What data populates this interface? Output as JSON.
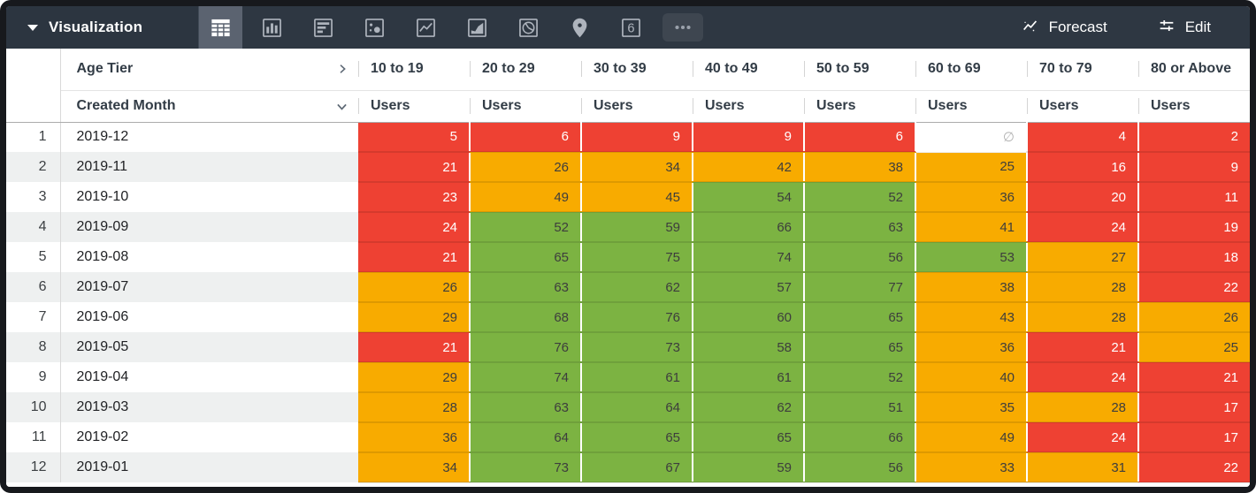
{
  "toolbar": {
    "title": "Visualization",
    "single_value_glyph": "6",
    "forecast_label": "Forecast",
    "edit_label": "Edit"
  },
  "table": {
    "pivot_field": "Age Tier",
    "row_field": "Created Month",
    "measure_label": "Users",
    "columns": [
      "10 to 19",
      "20 to 29",
      "30 to 39",
      "40 to 49",
      "50 to 59",
      "60 to 69",
      "70 to 79",
      "80 or Above"
    ],
    "null_symbol": "∅",
    "rows": [
      {
        "n": "1",
        "month": "2019-12",
        "values": [
          5,
          6,
          9,
          9,
          6,
          null,
          4,
          2
        ],
        "colors": [
          "r",
          "r",
          "r",
          "r",
          "r",
          "x",
          "r",
          "r"
        ]
      },
      {
        "n": "2",
        "month": "2019-11",
        "values": [
          21,
          26,
          34,
          42,
          38,
          25,
          16,
          9
        ],
        "colors": [
          "r",
          "o",
          "o",
          "o",
          "o",
          "o",
          "r",
          "r"
        ]
      },
      {
        "n": "3",
        "month": "2019-10",
        "values": [
          23,
          49,
          45,
          54,
          52,
          36,
          20,
          11
        ],
        "colors": [
          "r",
          "o",
          "o",
          "g",
          "g",
          "o",
          "r",
          "r"
        ]
      },
      {
        "n": "4",
        "month": "2019-09",
        "values": [
          24,
          52,
          59,
          66,
          63,
          41,
          24,
          19
        ],
        "colors": [
          "r",
          "g",
          "g",
          "g",
          "g",
          "o",
          "r",
          "r"
        ]
      },
      {
        "n": "5",
        "month": "2019-08",
        "values": [
          21,
          65,
          75,
          74,
          56,
          53,
          27,
          18
        ],
        "colors": [
          "r",
          "g",
          "g",
          "g",
          "g",
          "g",
          "o",
          "r"
        ]
      },
      {
        "n": "6",
        "month": "2019-07",
        "values": [
          26,
          63,
          62,
          57,
          77,
          38,
          28,
          22
        ],
        "colors": [
          "o",
          "g",
          "g",
          "g",
          "g",
          "o",
          "o",
          "r"
        ]
      },
      {
        "n": "7",
        "month": "2019-06",
        "values": [
          29,
          68,
          76,
          60,
          65,
          43,
          28,
          26
        ],
        "colors": [
          "o",
          "g",
          "g",
          "g",
          "g",
          "o",
          "o",
          "o"
        ]
      },
      {
        "n": "8",
        "month": "2019-05",
        "values": [
          21,
          76,
          73,
          58,
          65,
          36,
          21,
          25
        ],
        "colors": [
          "r",
          "g",
          "g",
          "g",
          "g",
          "o",
          "r",
          "o"
        ]
      },
      {
        "n": "9",
        "month": "2019-04",
        "values": [
          29,
          74,
          61,
          61,
          52,
          40,
          24,
          21
        ],
        "colors": [
          "o",
          "g",
          "g",
          "g",
          "g",
          "o",
          "r",
          "r"
        ]
      },
      {
        "n": "10",
        "month": "2019-03",
        "values": [
          28,
          63,
          64,
          62,
          51,
          35,
          28,
          17
        ],
        "colors": [
          "o",
          "g",
          "g",
          "g",
          "g",
          "o",
          "o",
          "r"
        ]
      },
      {
        "n": "11",
        "month": "2019-02",
        "values": [
          36,
          64,
          65,
          65,
          66,
          49,
          24,
          17
        ],
        "colors": [
          "o",
          "g",
          "g",
          "g",
          "g",
          "o",
          "r",
          "r"
        ]
      },
      {
        "n": "12",
        "month": "2019-01",
        "values": [
          34,
          73,
          67,
          59,
          56,
          33,
          31,
          22
        ],
        "colors": [
          "o",
          "g",
          "g",
          "g",
          "g",
          "o",
          "o",
          "r"
        ]
      }
    ]
  },
  "colors": {
    "red": "#ee4133",
    "orange": "#f8ab00",
    "green": "#7cb342",
    "toolbar_bg": "#2e3742",
    "selected_tile_bg": "#5b6370"
  }
}
